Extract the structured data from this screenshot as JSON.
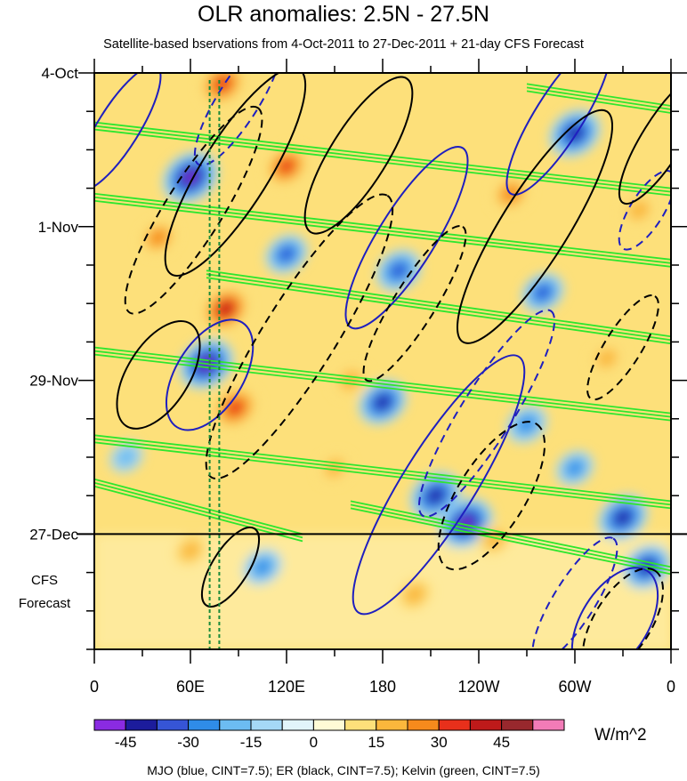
{
  "chart_data": {
    "type": "heatmap",
    "title": "OLR anomalies: 2.5N - 27.5N",
    "subtitle": "Satellite-based bservations from 4-Oct-2011 to 27-Dec-2011 + 21-day CFS Forecast",
    "x_tick_labels": [
      "0",
      "60E",
      "120E",
      "180",
      "120W",
      "60W",
      "0"
    ],
    "x_ticks_deg_east": [
      0,
      60,
      120,
      180,
      240,
      300,
      360
    ],
    "y_tick_labels": [
      "4-Oct",
      "1-Nov",
      "29-Nov",
      "27-Dec"
    ],
    "y_ticks_day_index": [
      0,
      28,
      56,
      84
    ],
    "forecast_label": [
      "CFS",
      "Forecast"
    ],
    "forecast_start_day_index": 84,
    "total_day_index": 105,
    "colorbar": {
      "levels": [
        -45,
        -30,
        -15,
        0,
        15,
        30,
        45
      ],
      "tick_labels": [
        "-45",
        "-30",
        "-15",
        "0",
        "15",
        "30",
        "45"
      ],
      "colors": [
        "#8a2be2",
        "#1c1c9c",
        "#3655d6",
        "#2f8ce8",
        "#6cbcf2",
        "#a5d8f6",
        "#e2f4fb",
        "#fffbd6",
        "#fde07a",
        "#fbb73c",
        "#f68a1c",
        "#e8301b",
        "#be1a1a",
        "#98282d",
        "#f27bb7"
      ],
      "units": "W/m^2"
    },
    "anomaly_fields": [
      {
        "lon": 60,
        "day": 19,
        "value": -48
      },
      {
        "lon": 80,
        "day": 2,
        "value": 36
      },
      {
        "lon": 120,
        "day": 17,
        "value": 33
      },
      {
        "lon": 82,
        "day": 43,
        "value": 38
      },
      {
        "lon": 70,
        "day": 53,
        "value": -46
      },
      {
        "lon": 88,
        "day": 61,
        "value": 36
      },
      {
        "lon": 180,
        "day": 60,
        "value": -38
      },
      {
        "lon": 213,
        "day": 77,
        "value": -42
      },
      {
        "lon": 232,
        "day": 82,
        "value": -46
      },
      {
        "lon": 300,
        "day": 11,
        "value": -42
      },
      {
        "lon": 330,
        "day": 81,
        "value": -40
      },
      {
        "lon": 345,
        "day": 90,
        "value": -38
      },
      {
        "lon": 190,
        "day": 36,
        "value": -34
      },
      {
        "lon": 280,
        "day": 40,
        "value": -30
      },
      {
        "lon": 270,
        "day": 64,
        "value": -28
      },
      {
        "lon": 120,
        "day": 33,
        "value": -30
      },
      {
        "lon": 260,
        "day": 22,
        "value": 26
      },
      {
        "lon": 160,
        "day": 56,
        "value": 22
      },
      {
        "lon": 250,
        "day": 85,
        "value": 20
      },
      {
        "lon": 200,
        "day": 95,
        "value": 22
      },
      {
        "lon": 40,
        "day": 30,
        "value": 24
      },
      {
        "lon": 340,
        "day": 25,
        "value": 22
      },
      {
        "lon": 300,
        "day": 72,
        "value": -24
      },
      {
        "lon": 20,
        "day": 70,
        "value": -18
      },
      {
        "lon": 105,
        "day": 90,
        "value": -26
      },
      {
        "lon": 60,
        "day": 87,
        "value": 20
      },
      {
        "lon": 150,
        "day": 72,
        "value": 18
      },
      {
        "lon": 320,
        "day": 52,
        "value": 20
      }
    ],
    "contour_legend": "MJO (blue, CINT=7.5); ER (black, CINT=7.5); Kelvin (green, CINT=7.5)",
    "mjo_color": "#1f1fbf",
    "er_color": "#000000",
    "kelvin_color": "#2ee62e",
    "mjo_contours": [
      {
        "lon": 15,
        "day": 10,
        "dlon": 30,
        "dday": 24,
        "sign": "negative"
      },
      {
        "lon": 72,
        "day": 55,
        "dlon": 70,
        "dday": 16,
        "sign": "negative"
      },
      {
        "lon": 215,
        "day": 75,
        "dlon": 60,
        "dday": 50,
        "sign": "negative"
      },
      {
        "lon": 195,
        "day": 30,
        "dlon": 45,
        "dday": 35,
        "sign": "negative"
      },
      {
        "lon": 290,
        "day": 8,
        "dlon": 36,
        "dday": 30,
        "sign": "negative"
      },
      {
        "lon": 325,
        "day": 100,
        "dlon": 55,
        "dday": 20,
        "sign": "negative"
      },
      {
        "lon": 245,
        "day": 62,
        "dlon": 40,
        "dday": 40,
        "sign": "positive"
      },
      {
        "lon": 90,
        "day": 5,
        "dlon": 30,
        "dday": 25,
        "sign": "positive"
      },
      {
        "lon": 345,
        "day": 25,
        "dlon": 22,
        "dday": 15,
        "sign": "positive"
      },
      {
        "lon": 300,
        "day": 96,
        "dlon": 30,
        "dday": 24,
        "sign": "positive"
      }
    ],
    "er_contours": [
      {
        "lon": 62,
        "day": 25,
        "dlon": 45,
        "dday": 40,
        "sign": "positive"
      },
      {
        "lon": 128,
        "day": 48,
        "dlon": 60,
        "dday": 55,
        "sign": "positive"
      },
      {
        "lon": 200,
        "day": 42,
        "dlon": 30,
        "dday": 30,
        "sign": "positive"
      },
      {
        "lon": 248,
        "day": 77,
        "dlon": 55,
        "dday": 28,
        "sign": "positive"
      },
      {
        "lon": 330,
        "day": 50,
        "dlon": 25,
        "dday": 20,
        "sign": "positive"
      },
      {
        "lon": 330,
        "day": 100,
        "dlon": 45,
        "dday": 20,
        "sign": "positive"
      },
      {
        "lon": 88,
        "day": 18,
        "dlon": 55,
        "dday": 40,
        "sign": "negative"
      },
      {
        "lon": 165,
        "day": 15,
        "dlon": 45,
        "dday": 30,
        "sign": "negative"
      },
      {
        "lon": 275,
        "day": 28,
        "dlon": 55,
        "dday": 45,
        "sign": "negative"
      },
      {
        "lon": 85,
        "day": 90,
        "dlon": 25,
        "dday": 15,
        "sign": "negative"
      },
      {
        "lon": 355,
        "day": 12,
        "dlon": 30,
        "dday": 25,
        "sign": "negative"
      },
      {
        "lon": 40,
        "day": 55,
        "dlon": 50,
        "dday": 20,
        "sign": "negative"
      }
    ],
    "kelvin_bands": [
      {
        "lon_start": 0,
        "day_start": 9,
        "lon_end": 360,
        "day_end": 21
      },
      {
        "lon_start": 0,
        "day_start": 22,
        "lon_end": 360,
        "day_end": 34
      },
      {
        "lon_start": 70,
        "day_start": 36,
        "lon_end": 360,
        "day_end": 48
      },
      {
        "lon_start": 0,
        "day_start": 50,
        "lon_end": 360,
        "day_end": 62
      },
      {
        "lon_start": 0,
        "day_start": 66,
        "lon_end": 360,
        "day_end": 78
      },
      {
        "lon_start": 0,
        "day_start": 74,
        "lon_end": 130,
        "day_end": 84
      },
      {
        "lon_start": 160,
        "day_start": 78,
        "lon_end": 360,
        "day_end": 90
      },
      {
        "lon_start": 270,
        "day_start": 2,
        "lon_end": 360,
        "day_end": 6
      }
    ],
    "reference_lines_deg_east": [
      72,
      78
    ]
  }
}
